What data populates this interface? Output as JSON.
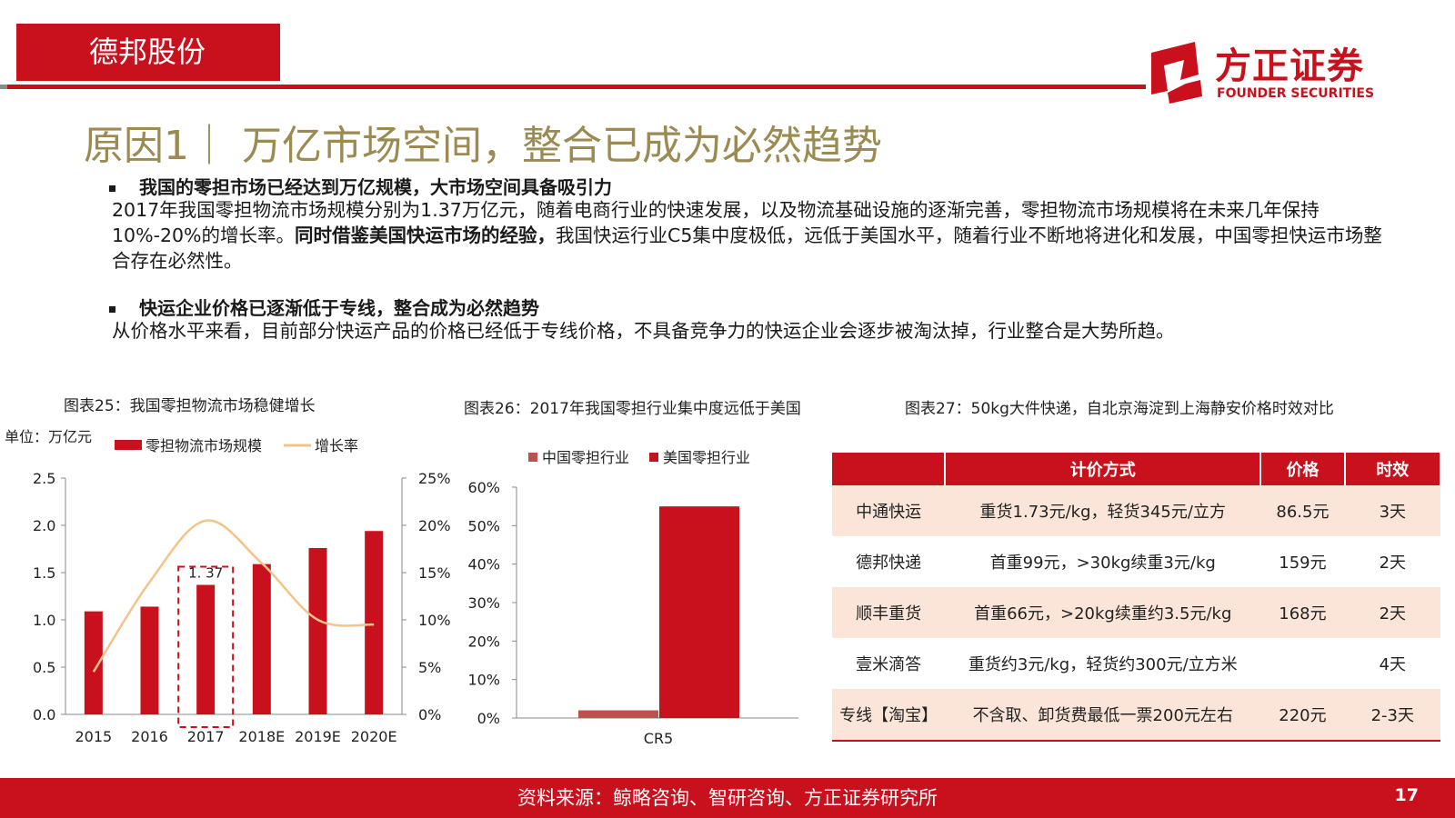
{
  "header": {
    "tag": "德邦股份"
  },
  "logo": {
    "name": "方正证券",
    "en": "FOUNDER SECURITIES",
    "icon": "founder-logo-icon"
  },
  "title": "原因1｜ 万亿市场空间，整合已成为必然趋势",
  "section1": {
    "heading": "我国的零担市场已经达到万亿规模，大市场空间具备吸引力",
    "text_a": "2017年我国零担物流市场规模分别为1.37万亿元，随着电商行业的快速发展，以及物流基础设施的逐渐完善，零担物流市场规模将在未来几年保持10%-20%的增长率。",
    "text_bold": "同时借鉴美国快运市场的经验，",
    "text_b": "我国快运行业C5集中度极低，远低于美国水平，随着行业不断地将进化和发展，中国零担快运市场整合存在必然性。"
  },
  "section2": {
    "heading": "快运企业价格已逐渐低于专线，整合成为必然趋势",
    "text": "从价格水平来看，目前部分快运产品的价格已经低于专线价格，不具备竞争力的快运企业会逐步被淘汰掉，行业整合是大势所趋。"
  },
  "captions": {
    "c25": "图表25：我国零担物流市场稳健增长",
    "c26": "图表26：2017年我国零担行业集中度远低于美国",
    "c27": "图表27：50kg大件快递，自北京海淀到上海静安价格时效对比"
  },
  "chart_data": [
    {
      "type": "bar",
      "unit_label": "单位：万亿元",
      "categories": [
        "2015",
        "2016",
        "2017",
        "2018E",
        "2019E",
        "2020E"
      ],
      "series": [
        {
          "name": "零担物流市场规模",
          "values": [
            1.09,
            1.14,
            1.37,
            1.59,
            1.76,
            1.94
          ],
          "color": "#c9101d"
        },
        {
          "name": "增长率",
          "type": "line",
          "axis": "right",
          "values": [
            4.5,
            14.0,
            20.5,
            16.0,
            10.0,
            9.5
          ],
          "color": "#f2c48b"
        }
      ],
      "ylim": [
        0,
        2.5
      ],
      "y_ticks": [
        "0.0",
        "0.5",
        "1.0",
        "1.5",
        "2.0",
        "2.5"
      ],
      "y2lim": [
        0,
        25
      ],
      "y2_ticks": [
        "0%",
        "5%",
        "10%",
        "15%",
        "20%",
        "25%"
      ],
      "annotation": "1. 37"
    },
    {
      "type": "bar",
      "categories": [
        "CR5"
      ],
      "series": [
        {
          "name": "中国零担行业",
          "values": [
            2
          ],
          "color": "#c0504d"
        },
        {
          "name": "美国零担行业",
          "values": [
            55
          ],
          "color": "#c9101d"
        }
      ],
      "ylim": [
        0,
        60
      ],
      "y_ticks": [
        "0%",
        "10%",
        "20%",
        "30%",
        "40%",
        "50%",
        "60%"
      ]
    }
  ],
  "table": {
    "headers": [
      "",
      "计价方式",
      "价格",
      "时效"
    ],
    "rows": [
      [
        "中通快运",
        "重货1.73元/kg，轻货345元/立方",
        "86.5元",
        "3天"
      ],
      [
        "德邦快递",
        "首重99元，>30kg续重3元/kg",
        "159元",
        "2天"
      ],
      [
        "顺丰重货",
        "首重66元，>20kg续重约3.5元/kg",
        "168元",
        "2天"
      ],
      [
        "壹米滴答",
        "重货约3元/kg，轻货约300元/立方米",
        "",
        "4天"
      ],
      [
        "专线【淘宝】",
        "不含取、卸货费最低一票200元左右",
        "220元",
        "2-3天"
      ]
    ]
  },
  "footer": {
    "source": "资料来源：鲸略咨询、智研咨询、方正证券研究所",
    "page": "17"
  }
}
